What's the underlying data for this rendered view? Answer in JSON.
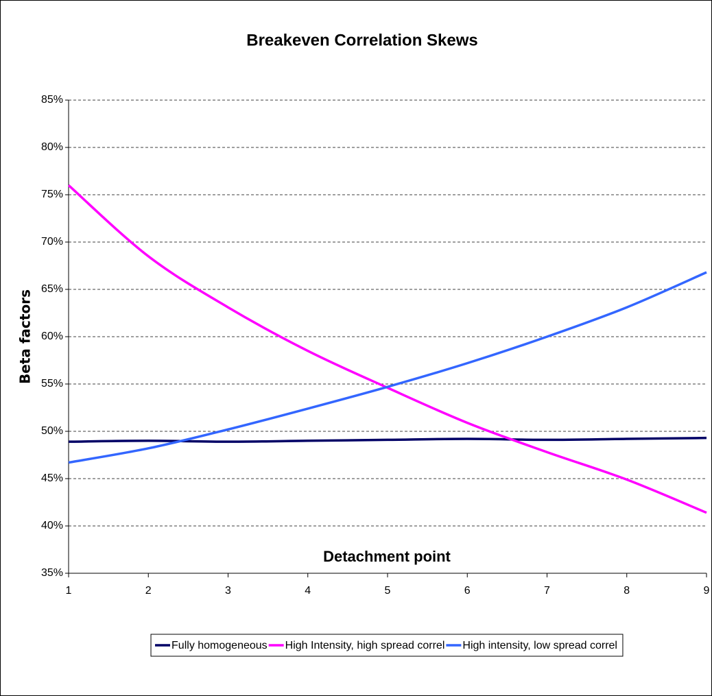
{
  "chart_data": {
    "type": "line",
    "title": "Breakeven Correlation Skews",
    "x_label": "Detachment point",
    "y_label": "Beta factors",
    "x": [
      1,
      2,
      3,
      4,
      5,
      6,
      7,
      8,
      9
    ],
    "series": [
      {
        "name": "Fully homogeneous",
        "color": "#000066",
        "values": [
          48.9,
          49.0,
          48.9,
          49.0,
          49.1,
          49.2,
          49.1,
          49.2,
          49.3
        ]
      },
      {
        "name": "High Intensity, high spread correl",
        "color": "#ff00ff",
        "values": [
          76.0,
          68.5,
          63.1,
          58.5,
          54.6,
          50.9,
          47.8,
          44.9,
          41.4
        ]
      },
      {
        "name": "High intensity, low spread correl",
        "color": "#3366ff",
        "values": [
          46.7,
          48.2,
          50.2,
          52.4,
          54.7,
          57.2,
          60.0,
          63.1,
          66.8
        ]
      }
    ],
    "xlim": [
      1,
      9
    ],
    "xticks": [
      1,
      2,
      3,
      4,
      5,
      6,
      7,
      8,
      9
    ],
    "ylim": [
      35,
      85
    ],
    "yticks": [
      {
        "value": 35,
        "label": "35%"
      },
      {
        "value": 40,
        "label": "40%"
      },
      {
        "value": 45,
        "label": "45%"
      },
      {
        "value": 50,
        "label": "50%"
      },
      {
        "value": 55,
        "label": "55%"
      },
      {
        "value": 60,
        "label": "60%"
      },
      {
        "value": 65,
        "label": "65%"
      },
      {
        "value": 70,
        "label": "70%"
      },
      {
        "value": 75,
        "label": "75%"
      },
      {
        "value": 80,
        "label": "80%"
      },
      {
        "value": 85,
        "label": "85%"
      }
    ],
    "grid": true,
    "legend": "bottom"
  }
}
